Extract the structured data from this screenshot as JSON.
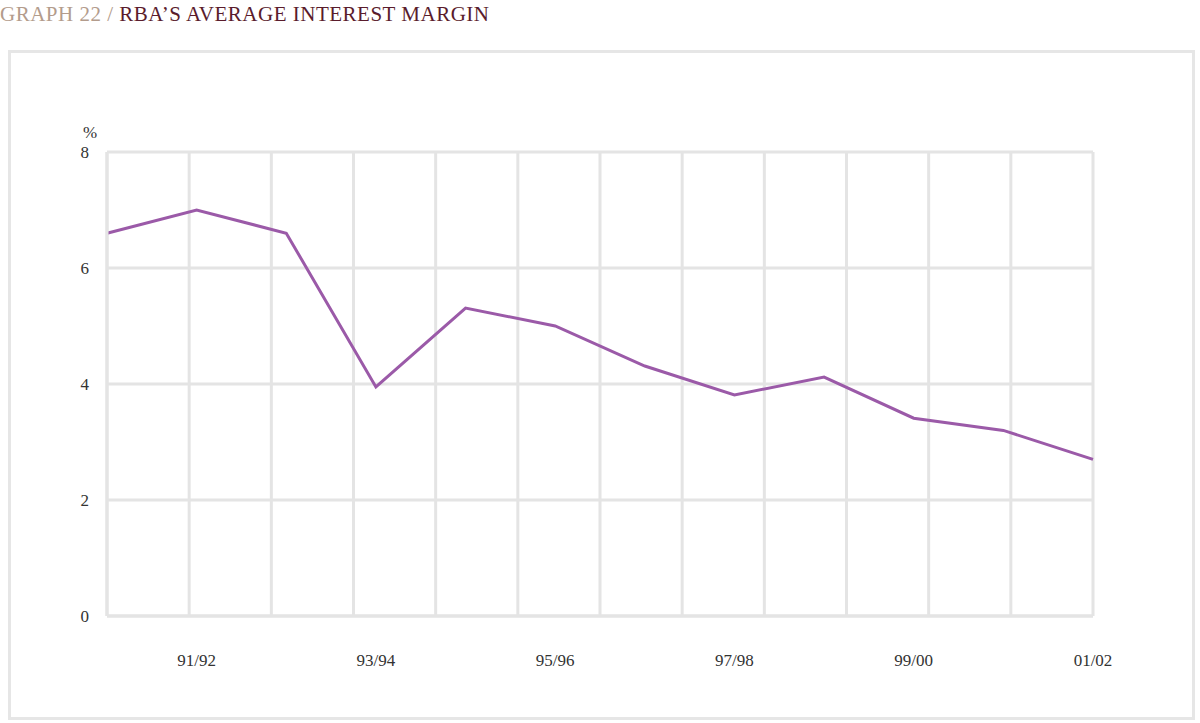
{
  "chart_data": {
    "type": "line",
    "title": "GRAPH 22 / RBA’S AVERAGE INTEREST MARGIN",
    "ylabel": "%",
    "categories": [
      null,
      "91/92",
      null,
      "93/94",
      null,
      "95/96",
      null,
      "97/98",
      null,
      "99/00",
      null,
      "01/02"
    ],
    "values": [
      6.6,
      7.0,
      6.6,
      3.95,
      5.31,
      5.0,
      4.31,
      3.81,
      4.12,
      3.41,
      3.2,
      2.7
    ],
    "color": "#9b5aa8",
    "ylim": [
      0,
      8
    ],
    "yticks": [
      0,
      2,
      4,
      6,
      8
    ],
    "grid": true
  }
}
